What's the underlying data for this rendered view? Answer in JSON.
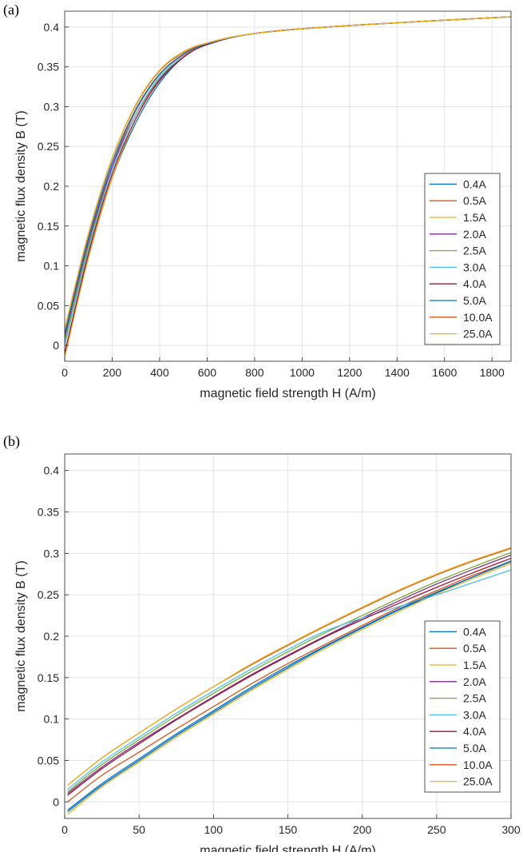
{
  "panels": {
    "a": {
      "label": "(a)"
    },
    "b": {
      "label": "(b)"
    }
  },
  "colors": {
    "0.4A": "#0072BD",
    "0.5A": "#D95319",
    "1.5A": "#EDB120",
    "2.0A": "#7E2F8E",
    "2.5A": "#77AC30",
    "3.0A": "#4DBEEE",
    "4.0A": "#A2142F",
    "5.0A": "#0072BD",
    "10.0A": "#D95319",
    "25.0A": "#EDB120"
  },
  "chart_data": [
    {
      "type": "line",
      "panel": "(a)",
      "title": "",
      "xlabel": "magnetic field strength H (A/m)",
      "ylabel": "magnetic flux density B (T)",
      "xlim": [
        0,
        1880
      ],
      "ylim": [
        -0.02,
        0.42
      ],
      "xticks": [
        0,
        200,
        400,
        600,
        800,
        1000,
        1200,
        1400,
        1600,
        1800
      ],
      "yticks": [
        0,
        0.05,
        0.1,
        0.15,
        0.2,
        0.25,
        0.3,
        0.35,
        0.4
      ],
      "ytick_labels": [
        "0",
        "0.05",
        "0.1",
        "0.15",
        "0.2",
        "0.25",
        "0.3",
        "0.35",
        "0.4"
      ],
      "grid": true,
      "legend_position": "right-middle",
      "series": [
        {
          "name": "0.4A",
          "x": [
            0,
            100,
            200,
            300,
            400,
            500,
            600,
            800,
            1200,
            1880
          ],
          "y": [
            -0.01,
            0.11,
            0.21,
            0.28,
            0.33,
            0.362,
            0.378,
            0.392,
            0.402,
            0.413
          ]
        },
        {
          "name": "0.5A",
          "x": [
            0,
            100,
            200,
            300,
            400,
            500,
            600,
            800,
            1200,
            1880
          ],
          "y": [
            0.0,
            0.125,
            0.225,
            0.295,
            0.34,
            0.365,
            0.379,
            0.392,
            0.402,
            0.413
          ]
        },
        {
          "name": "1.5A",
          "x": [
            0,
            100,
            200,
            300,
            400,
            500,
            600,
            800,
            1200,
            1880
          ],
          "y": [
            -0.015,
            0.11,
            0.21,
            0.285,
            0.335,
            0.363,
            0.378,
            0.392,
            0.402,
            0.413
          ]
        },
        {
          "name": "2.0A",
          "x": [
            0,
            100,
            200,
            300,
            400,
            500,
            600,
            800,
            1200,
            1880
          ],
          "y": [
            0.01,
            0.13,
            0.225,
            0.29,
            0.335,
            0.362,
            0.378,
            0.392,
            0.402,
            0.413
          ]
        },
        {
          "name": "2.5A",
          "x": [
            0,
            100,
            200,
            300,
            400,
            500,
            600,
            800,
            1200,
            1880
          ],
          "y": [
            0.005,
            0.125,
            0.22,
            0.29,
            0.336,
            0.363,
            0.378,
            0.392,
            0.402,
            0.413
          ]
        },
        {
          "name": "3.0A",
          "x": [
            0,
            100,
            200,
            300,
            400,
            500,
            600,
            800,
            1200,
            1880
          ],
          "y": [
            0.0,
            0.12,
            0.22,
            0.29,
            0.337,
            0.363,
            0.378,
            0.392,
            0.402,
            0.413
          ]
        },
        {
          "name": "4.0A",
          "x": [
            0,
            100,
            200,
            300,
            400,
            500,
            600,
            800,
            1200,
            1880
          ],
          "y": [
            -0.01,
            0.115,
            0.215,
            0.285,
            0.333,
            0.362,
            0.378,
            0.392,
            0.402,
            0.413
          ]
        },
        {
          "name": "5.0A",
          "x": [
            0,
            100,
            200,
            300,
            400,
            500,
            600,
            800,
            1200,
            1880
          ],
          "y": [
            0.015,
            0.135,
            0.23,
            0.297,
            0.341,
            0.366,
            0.379,
            0.392,
            0.402,
            0.413
          ]
        },
        {
          "name": "10.0A",
          "x": [
            0,
            100,
            200,
            300,
            400,
            500,
            600,
            800,
            1200,
            1880
          ],
          "y": [
            0.02,
            0.14,
            0.235,
            0.302,
            0.345,
            0.368,
            0.38,
            0.392,
            0.402,
            0.413
          ]
        },
        {
          "name": "25.0A",
          "x": [
            0,
            100,
            200,
            300,
            400,
            500,
            600,
            800,
            1200,
            1880
          ],
          "y": [
            0.02,
            0.14,
            0.235,
            0.303,
            0.346,
            0.369,
            0.38,
            0.392,
            0.402,
            0.413
          ]
        }
      ]
    },
    {
      "type": "line",
      "panel": "(b)",
      "title": "",
      "xlabel": "magnetic field strength H (A/m)",
      "ylabel": "magnetic flux density B (T)",
      "xlim": [
        0,
        300
      ],
      "ylim": [
        -0.02,
        0.42
      ],
      "xticks": [
        0,
        50,
        100,
        150,
        200,
        250,
        300
      ],
      "yticks": [
        0,
        0.05,
        0.1,
        0.15,
        0.2,
        0.25,
        0.3,
        0.35,
        0.4
      ],
      "ytick_labels": [
        "0",
        "0.05",
        "0.1",
        "0.15",
        "0.2",
        "0.25",
        "0.3",
        "0.35",
        "0.4"
      ],
      "grid": true,
      "legend_position": "right-middle",
      "series": [
        {
          "name": "0.4A",
          "x": [
            2,
            25,
            50,
            75,
            100,
            125,
            150,
            175,
            200,
            225,
            250,
            275,
            300
          ],
          "y": [
            -0.012,
            0.02,
            0.05,
            0.08,
            0.108,
            0.136,
            0.162,
            0.187,
            0.21,
            0.232,
            0.252,
            0.272,
            0.29
          ]
        },
        {
          "name": "0.5A",
          "x": [
            2,
            25,
            50,
            75,
            100,
            125,
            150,
            175,
            200,
            225,
            250,
            275,
            300
          ],
          "y": [
            0.0,
            0.032,
            0.06,
            0.088,
            0.115,
            0.142,
            0.167,
            0.19,
            0.213,
            0.235,
            0.255,
            0.274,
            0.29
          ]
        },
        {
          "name": "1.5A",
          "x": [
            2,
            25,
            50,
            75,
            100,
            125,
            150,
            175,
            200,
            225,
            250,
            275,
            300
          ],
          "y": [
            -0.015,
            0.018,
            0.048,
            0.078,
            0.106,
            0.134,
            0.16,
            0.185,
            0.208,
            0.23,
            0.251,
            0.27,
            0.288
          ]
        },
        {
          "name": "2.0A",
          "x": [
            2,
            25,
            50,
            75,
            100,
            125,
            150,
            175,
            200,
            225,
            250,
            275,
            300
          ],
          "y": [
            0.01,
            0.042,
            0.072,
            0.1,
            0.127,
            0.153,
            0.177,
            0.2,
            0.222,
            0.243,
            0.263,
            0.281,
            0.298
          ]
        },
        {
          "name": "2.5A",
          "x": [
            2,
            25,
            50,
            75,
            100,
            125,
            150,
            175,
            200,
            225,
            250,
            275,
            300
          ],
          "y": [
            0.012,
            0.045,
            0.075,
            0.104,
            0.131,
            0.157,
            0.181,
            0.204,
            0.225,
            0.246,
            0.266,
            0.284,
            0.301
          ]
        },
        {
          "name": "3.0A",
          "x": [
            2,
            25,
            50,
            75,
            100,
            125,
            150,
            175,
            200,
            225,
            250,
            275,
            300
          ],
          "y": [
            0.015,
            0.048,
            0.078,
            0.107,
            0.134,
            0.16,
            0.184,
            0.206,
            0.222,
            0.236,
            0.25,
            0.265,
            0.28
          ]
        },
        {
          "name": "4.0A",
          "x": [
            2,
            25,
            50,
            75,
            100,
            125,
            150,
            175,
            200,
            225,
            250,
            275,
            300
          ],
          "y": [
            0.008,
            0.04,
            0.07,
            0.099,
            0.126,
            0.152,
            0.176,
            0.199,
            0.22,
            0.24,
            0.259,
            0.277,
            0.294
          ]
        },
        {
          "name": "5.0A",
          "x": [
            2,
            25,
            50,
            75,
            100,
            125,
            150,
            175,
            200,
            225,
            250,
            275,
            300
          ],
          "y": [
            -0.01,
            0.022,
            0.052,
            0.082,
            0.11,
            0.138,
            0.164,
            0.188,
            0.211,
            0.233,
            0.253,
            0.272,
            0.291
          ]
        },
        {
          "name": "10.0A",
          "x": [
            2,
            25,
            50,
            75,
            100,
            125,
            150,
            175,
            200,
            225,
            250,
            275,
            300
          ],
          "y": [
            0.02,
            0.053,
            0.083,
            0.112,
            0.139,
            0.165,
            0.189,
            0.212,
            0.234,
            0.255,
            0.274,
            0.291,
            0.306
          ]
        },
        {
          "name": "25.0A",
          "x": [
            2,
            25,
            50,
            75,
            100,
            125,
            150,
            175,
            200,
            225,
            250,
            275,
            300
          ],
          "y": [
            0.02,
            0.053,
            0.083,
            0.112,
            0.139,
            0.166,
            0.19,
            0.213,
            0.235,
            0.256,
            0.275,
            0.292,
            0.307
          ]
        }
      ]
    }
  ]
}
